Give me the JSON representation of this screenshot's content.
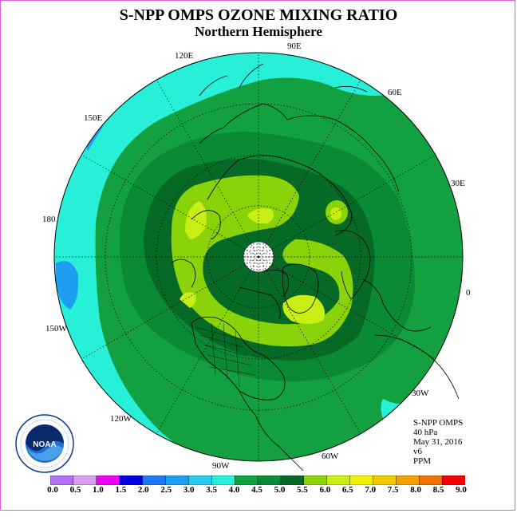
{
  "title": "S-NPP OMPS OZONE MIXING RATIO",
  "subtitle": "Northern Hemisphere",
  "longitude_labels": {
    "lon_90E": "90E",
    "lon_60E": "60E",
    "lon_30E": "30E",
    "lon_0": "0",
    "lon_30W": "30W",
    "lon_60W": "60W",
    "lon_90W": "90W",
    "lon_120W": "120W",
    "lon_150W": "150W",
    "lon_180": "180",
    "lon_150E": "150E",
    "lon_120E": "120E"
  },
  "info": {
    "instrument": "S-NPP OMPS",
    "level": "40 hPa",
    "date": "May 31, 2016",
    "version": "v6",
    "units": "PPM"
  },
  "logo_text": "NOAA",
  "colorbar": {
    "ticks": [
      "0.0",
      "0.5",
      "1.0",
      "1.5",
      "2.0",
      "2.5",
      "3.0",
      "3.5",
      "4.0",
      "4.5",
      "5.0",
      "5.5",
      "6.0",
      "6.5",
      "7.0",
      "7.5",
      "8.0",
      "8.5",
      "9.0"
    ],
    "colors": [
      "#b070f0",
      "#d8a0f0",
      "#f000f0",
      "#0000e0",
      "#1e78f0",
      "#1e9ef0",
      "#28c8f0",
      "#28f0d8",
      "#12a040",
      "#0b8a36",
      "#066a26",
      "#8ad20a",
      "#c8ee14",
      "#f0f000",
      "#f0c800",
      "#f0a000",
      "#f07000",
      "#f00000",
      "#8b5a3c"
    ]
  },
  "map_colors": {
    "contour_4_0": "#28f0d8",
    "contour_4_5": "#12a040",
    "contour_5_0": "#0b8a36",
    "contour_5_5": "#066a26",
    "contour_6_0": "#8ad20a",
    "contour_6_5": "#c8ee14",
    "contour_7_0": "#f0f000",
    "below_4": "#1e9ef0"
  }
}
